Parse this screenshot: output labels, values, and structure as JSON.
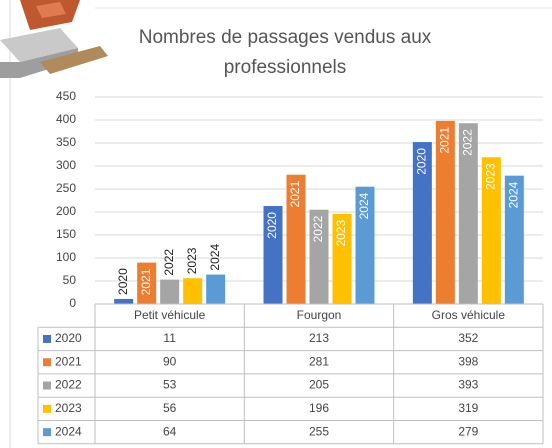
{
  "chart_data": {
    "type": "bar",
    "title_lines": [
      "Nombres de passages vendus aux",
      "professionnels"
    ],
    "categories": [
      "Petit véhicule",
      "Fourgon",
      "Gros véhicule"
    ],
    "series": [
      {
        "name": "2020",
        "color": "#4472c4",
        "values": [
          11,
          213,
          352
        ]
      },
      {
        "name": "2021",
        "color": "#ed7d31",
        "values": [
          90,
          281,
          398
        ]
      },
      {
        "name": "2022",
        "color": "#a5a5a5",
        "values": [
          53,
          205,
          393
        ]
      },
      {
        "name": "2023",
        "color": "#ffc000",
        "values": [
          56,
          196,
          319
        ]
      },
      {
        "name": "2024",
        "color": "#5b9bd5",
        "values": [
          64,
          255,
          279
        ]
      }
    ],
    "ylim": [
      0,
      450
    ],
    "yticks": [
      0,
      50,
      100,
      150,
      200,
      250,
      300,
      350,
      400,
      450
    ],
    "grid": true
  }
}
